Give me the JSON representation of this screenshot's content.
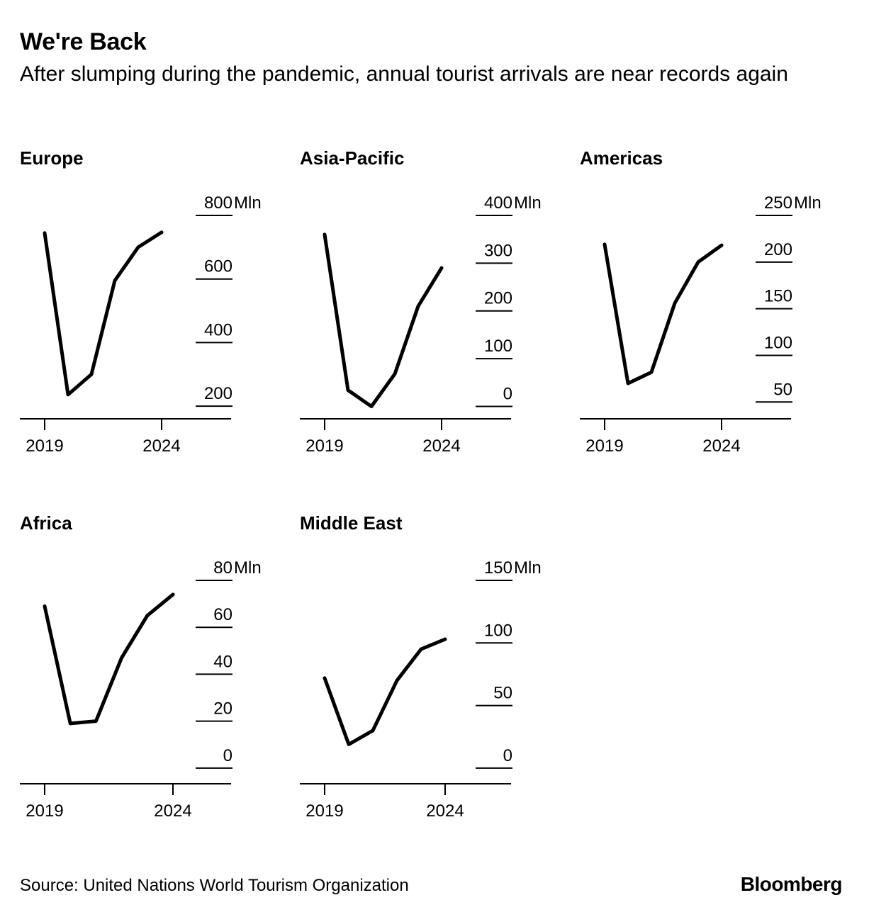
{
  "title": "We're Back",
  "subtitle": "After slumping during the pandemic, annual tourist arrivals are near records again",
  "source": "Source: United Nations World Tourism Organization",
  "brand": "Bloomberg",
  "colors": {
    "line": "#000000",
    "background": "#ffffff",
    "grid": "#000000"
  },
  "chart_data": [
    {
      "type": "line",
      "title": "Europe",
      "unit_label": "Mln",
      "x": [
        2019,
        2020,
        2021,
        2022,
        2023,
        2024
      ],
      "values": [
        745,
        236,
        300,
        595,
        700,
        747
      ],
      "ylim": [
        160,
        800
      ],
      "yticks": [
        200,
        400,
        600,
        800
      ],
      "xticks": [
        2019,
        2024
      ],
      "grid": "short right-side tick lines"
    },
    {
      "type": "line",
      "title": "Asia-Pacific",
      "unit_label": "Mln",
      "x": [
        2019,
        2020,
        2021,
        2022,
        2023,
        2024
      ],
      "values": [
        360,
        34,
        0,
        68,
        210,
        290
      ],
      "ylim": [
        -26,
        400
      ],
      "yticks": [
        0,
        100,
        200,
        300,
        400
      ],
      "xticks": [
        2019,
        2024
      ],
      "grid": "short right-side tick lines"
    },
    {
      "type": "line",
      "title": "Americas",
      "unit_label": "Mln",
      "x": [
        2019,
        2020,
        2021,
        2022,
        2023,
        2024
      ],
      "values": [
        219,
        70,
        82,
        156,
        200,
        218
      ],
      "ylim": [
        32,
        250
      ],
      "yticks": [
        50,
        100,
        150,
        200,
        250
      ],
      "xticks": [
        2019,
        2024
      ],
      "grid": "short right-side tick lines"
    },
    {
      "type": "line",
      "title": "Africa",
      "unit_label": "Mln",
      "x": [
        2019,
        2020,
        2021,
        2022,
        2023,
        2024
      ],
      "values": [
        69,
        19,
        20,
        47,
        65,
        74
      ],
      "ylim": [
        -6.7,
        80
      ],
      "yticks": [
        0,
        20,
        40,
        60,
        80
      ],
      "xticks": [
        2019,
        2024
      ],
      "grid": "short right-side tick lines"
    },
    {
      "type": "line",
      "title": "Middle East",
      "unit_label": "Mln",
      "x": [
        2019,
        2020,
        2021,
        2022,
        2023,
        2024
      ],
      "values": [
        72,
        19,
        30,
        70,
        95,
        103
      ],
      "ylim": [
        -12.5,
        150
      ],
      "yticks": [
        0,
        50,
        100,
        150
      ],
      "xticks": [
        2019,
        2024
      ],
      "grid": "short right-side tick lines"
    }
  ]
}
